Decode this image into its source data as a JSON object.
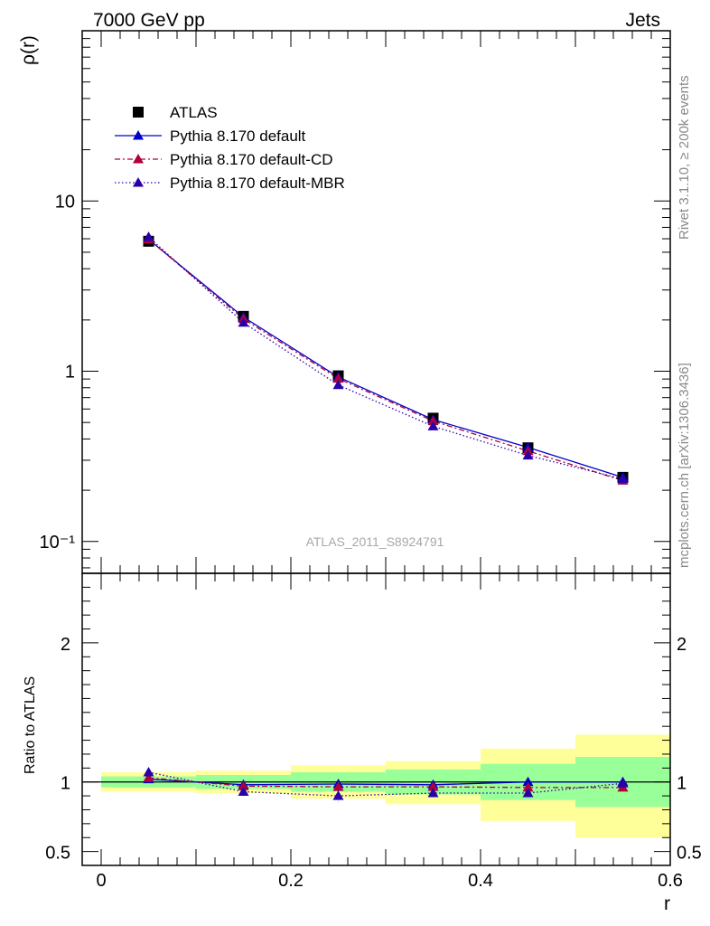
{
  "header": {
    "left": "7000 GeV pp",
    "right": "Jets"
  },
  "side_labels": {
    "rivet": "Rivet 3.1.10, ≥ 200k events",
    "mcplots": "mcplots.cern.ch [arXiv:1306.3436]"
  },
  "chart_data": [
    {
      "type": "line",
      "panel": "main",
      "ylabel": "ρ(r)",
      "xlabel": "",
      "yscale": "log",
      "xlim": [
        -0.02,
        0.6
      ],
      "ylim": [
        0.065,
        100
      ],
      "y_ticks": [
        0.1,
        1,
        10
      ],
      "y_tick_labels": [
        "10⁻¹",
        "1",
        "10"
      ],
      "watermark": "ATLAS_2011_S8924791",
      "legend_position": "top-left",
      "x": [
        0.05,
        0.15,
        0.25,
        0.35,
        0.45,
        0.55
      ],
      "series": [
        {
          "name": "ATLAS",
          "values": [
            5.8,
            2.1,
            0.94,
            0.53,
            0.355,
            0.238
          ],
          "color": "#000000",
          "marker": "square",
          "line": "none"
        },
        {
          "name": "Pythia 8.170 default",
          "values": [
            5.95,
            2.08,
            0.925,
            0.52,
            0.357,
            0.238
          ],
          "color": "#0000cc",
          "marker": "triangle",
          "line": "solid"
        },
        {
          "name": "Pythia 8.170 default-CD",
          "values": [
            5.95,
            2.03,
            0.905,
            0.51,
            0.34,
            0.228
          ],
          "color": "#b0003a",
          "marker": "triangle",
          "line": "dashdot"
        },
        {
          "name": "Pythia 8.170 default-MBR",
          "values": [
            6.15,
            1.93,
            0.83,
            0.475,
            0.32,
            0.233
          ],
          "color": "#2a00aa",
          "marker": "triangle",
          "line": "dotted"
        }
      ]
    },
    {
      "type": "line",
      "panel": "ratio",
      "ylabel": "Ratio to ATLAS",
      "xlabel": "r",
      "ylim": [
        0.4,
        2.5
      ],
      "y_ticks": [
        0.5,
        1,
        2
      ],
      "y_tick_labels": [
        "0.5",
        "1",
        "2"
      ],
      "x_ticks": [
        0,
        0.2,
        0.4,
        0.6
      ],
      "x_tick_labels": [
        "0",
        "0.2",
        "0.4",
        "0.6"
      ],
      "x": [
        0.05,
        0.15,
        0.25,
        0.35,
        0.45,
        0.55
      ],
      "bands": [
        {
          "x0": 0.0,
          "x1": 0.1,
          "yellow": [
            0.93,
            1.07
          ],
          "green": [
            0.96,
            1.04
          ]
        },
        {
          "x0": 0.1,
          "x1": 0.2,
          "yellow": [
            0.92,
            1.08
          ],
          "green": [
            0.95,
            1.05
          ]
        },
        {
          "x0": 0.2,
          "x1": 0.3,
          "yellow": [
            0.88,
            1.12
          ],
          "green": [
            0.93,
            1.07
          ]
        },
        {
          "x0": 0.3,
          "x1": 0.4,
          "yellow": [
            0.84,
            1.15
          ],
          "green": [
            0.91,
            1.09
          ]
        },
        {
          "x0": 0.4,
          "x1": 0.5,
          "yellow": [
            0.72,
            1.24
          ],
          "green": [
            0.87,
            1.13
          ]
        },
        {
          "x0": 0.5,
          "x1": 0.6,
          "yellow": [
            0.6,
            1.34
          ],
          "green": [
            0.82,
            1.18
          ]
        }
      ],
      "series": [
        {
          "name": "Pythia 8.170 default",
          "values": [
            1.02,
            0.98,
            0.985,
            0.98,
            1.0,
            1.0
          ],
          "err": [
            0.02,
            0.01,
            0.01,
            0.01,
            0.01,
            0.02
          ],
          "color": "#0000cc",
          "line": "solid"
        },
        {
          "name": "Pythia 8.170 default-CD",
          "values": [
            1.03,
            0.97,
            0.965,
            0.965,
            0.96,
            0.96
          ],
          "err": [
            0.02,
            0.01,
            0.01,
            0.01,
            0.01,
            0.02
          ],
          "color": "#b0003a",
          "line": "dashdot"
        },
        {
          "name": "Pythia 8.170 default-MBR",
          "values": [
            1.07,
            0.93,
            0.9,
            0.92,
            0.92,
            0.99
          ],
          "err": [
            0.02,
            0.03,
            0.04,
            0.03,
            0.03,
            0.04
          ],
          "color": "#2a00aa",
          "line": "dotted"
        }
      ]
    }
  ]
}
